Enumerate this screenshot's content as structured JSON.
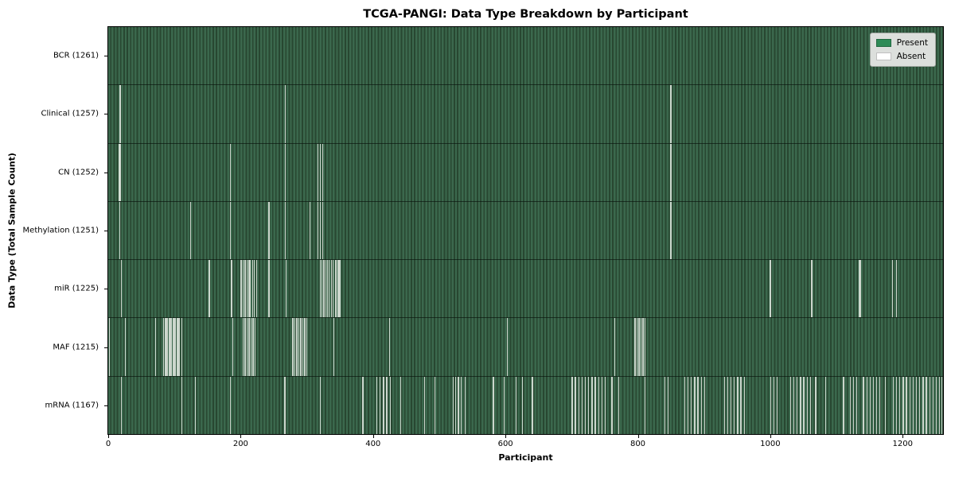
{
  "chart_data": {
    "type": "heatmap",
    "title": "TCGA-PANGI: Data Type Breakdown by Participant",
    "xlabel": "Participant",
    "ylabel": "Data Type (Total Sample Count)",
    "x_max": 1261,
    "x_ticks": [
      0,
      200,
      400,
      600,
      800,
      1000,
      1200
    ],
    "legend": {
      "position": "upper right",
      "entries": [
        {
          "label": "Present",
          "color": "#2e8b57"
        },
        {
          "label": "Absent",
          "color": "#ffffff"
        }
      ]
    },
    "colors": {
      "present_stripe_light": "#3b684d",
      "present_stripe_dark": "#284731",
      "absent_line": "#dde4dd",
      "legend_bg": "#dcdfdc"
    },
    "rows": [
      {
        "label": "BCR (1261)",
        "data_type": "BCR",
        "total_count": 1261,
        "absent": []
      },
      {
        "label": "Clinical (1257)",
        "data_type": "Clinical",
        "total_count": 1257,
        "absent": [
          17,
          18,
          267,
          849
        ]
      },
      {
        "label": "CN (1252)",
        "data_type": "CN",
        "total_count": 1252,
        "absent": [
          16,
          17,
          18,
          184,
          267,
          316,
          320,
          323,
          849
        ]
      },
      {
        "label": "Methylation (1251)",
        "data_type": "Methylation",
        "total_count": 1251,
        "absent": [
          17,
          124,
          184,
          242,
          267,
          304,
          316,
          320,
          323,
          849
        ]
      },
      {
        "label": "miR (1225)",
        "data_type": "miR",
        "total_count": 1225,
        "absent": [
          19,
          152,
          185,
          186,
          200,
          203,
          206,
          209,
          212,
          214,
          217,
          220,
          223,
          242,
          268,
          320,
          322,
          324,
          326,
          328,
          330,
          333,
          336,
          339,
          342,
          344,
          346,
          348,
          350,
          999,
          1000,
          1062,
          1134,
          1136,
          1184,
          1190
        ]
      },
      {
        "label": "MAF (1215)",
        "data_type": "MAF",
        "total_count": 1215,
        "absent": [
          1,
          25,
          71,
          83,
          85,
          87,
          89,
          91,
          93,
          95,
          97,
          99,
          101,
          103,
          105,
          107,
          110,
          187,
          203,
          205,
          207,
          209,
          211,
          213,
          215,
          217,
          219,
          221,
          278,
          281,
          284,
          287,
          290,
          293,
          296,
          299,
          340,
          424,
          602,
          764,
          795,
          798,
          801,
          804,
          807,
          810
        ]
      },
      {
        "label": "mRNA (1167)",
        "data_type": "mRNA",
        "total_count": 1167,
        "absent": [
          19,
          110,
          131,
          184,
          266,
          320,
          384,
          405,
          410,
          415,
          420,
          425,
          441,
          477,
          493,
          520,
          524,
          528,
          532,
          538,
          581,
          597,
          615,
          625,
          640,
          700,
          705,
          710,
          715,
          720,
          725,
          730,
          735,
          740,
          745,
          750,
          760,
          770,
          810,
          840,
          845,
          870,
          875,
          880,
          885,
          890,
          895,
          900,
          930,
          935,
          940,
          945,
          950,
          955,
          960,
          1000,
          1005,
          1010,
          1030,
          1035,
          1040,
          1045,
          1050,
          1055,
          1060,
          1068,
          1083,
          1110,
          1120,
          1125,
          1130,
          1140,
          1145,
          1150,
          1155,
          1160,
          1165,
          1173,
          1185,
          1190,
          1195,
          1200,
          1205,
          1210,
          1215,
          1220,
          1225,
          1230,
          1235,
          1240,
          1245,
          1250,
          1255,
          1258
        ]
      }
    ]
  }
}
